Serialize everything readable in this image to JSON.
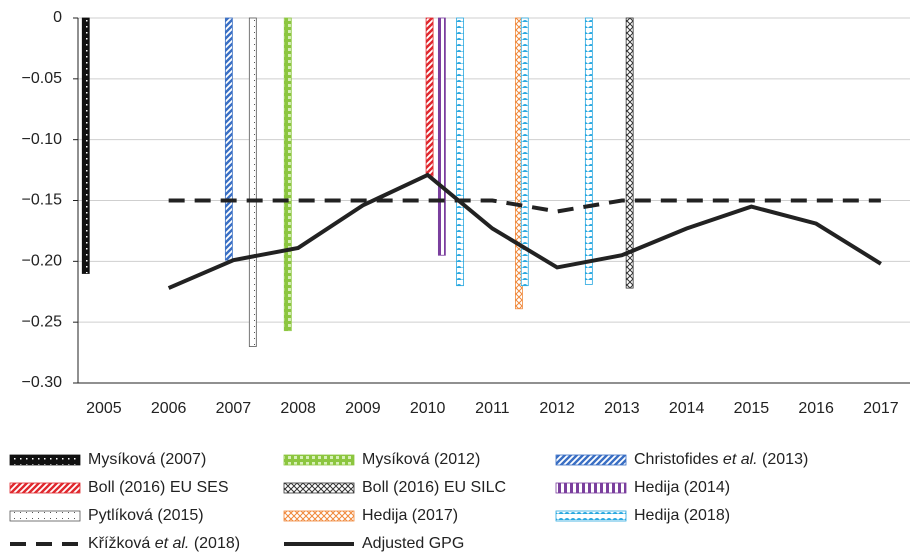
{
  "chart_data": {
    "type": "bar",
    "xlim": [
      2004.6,
      2017.45
    ],
    "xticks": [
      2005,
      2006,
      2007,
      2008,
      2009,
      2010,
      2011,
      2012,
      2013,
      2014,
      2015,
      2016,
      2017
    ],
    "ylim": [
      -0.3,
      0
    ],
    "yticks": [
      0,
      {
        "value": -0.05,
        "label": "−0.05"
      },
      {
        "value": -0.1,
        "label": "−0.10"
      },
      {
        "value": -0.15,
        "label": "−0.15"
      },
      {
        "value": -0.2,
        "label": "−0.20"
      },
      {
        "value": -0.25,
        "label": "−0.25"
      },
      {
        "value": -0.3,
        "label": "−0.30"
      }
    ],
    "grid": true,
    "series": [
      {
        "name": "Mysíková (2007)",
        "type": "bar",
        "color": "#111111",
        "pattern": "solid-dots",
        "x": [
          2004.72
        ],
        "values": [
          -0.21
        ]
      },
      {
        "name": "Mysíková (2012)",
        "type": "bar",
        "color": "#8cc63f",
        "pattern": "grid",
        "x": [
          2007.84
        ],
        "values": [
          -0.257
        ]
      },
      {
        "name": "Christofides et al. (2013)",
        "type": "bar",
        "color": "#3a6fc4",
        "pattern": "stripes",
        "x": [
          2006.93
        ],
        "values": [
          -0.199
        ]
      },
      {
        "name": "Boll (2016) EU SES",
        "type": "bar",
        "color": "#e0282e",
        "pattern": "stripes",
        "x": [
          2010.03
        ],
        "values": [
          -0.13
        ]
      },
      {
        "name": "Boll (2016) EU SILC",
        "type": "bar",
        "color": "#333333",
        "pattern": "crosshatch",
        "x": [
          2013.12
        ],
        "values": [
          -0.222
        ]
      },
      {
        "name": "Hedija (2014)",
        "type": "bar",
        "color": "#7b3f9e",
        "pattern": "vertical",
        "x": [
          2010.22
        ],
        "values": [
          -0.195
        ]
      },
      {
        "name": "Pytlíková (2015)",
        "type": "bar",
        "color": "#555555",
        "pattern": "dots",
        "x": [
          2007.3
        ],
        "values": [
          -0.27
        ]
      },
      {
        "name": "Hedija (2017)",
        "type": "bar",
        "color": "#f0883a",
        "pattern": "crosshatch",
        "x": [
          2011.41
        ],
        "values": [
          -0.239
        ]
      },
      {
        "name": "Hedija (2018)",
        "type": "bar",
        "color": "#29a8e0",
        "pattern": "scallop",
        "x": [
          2010.5,
          2011.5,
          2012.49
        ],
        "values": [
          -0.22,
          -0.22,
          -0.219
        ]
      },
      {
        "name": "Křížková et al. (2018)",
        "type": "line",
        "dash": true,
        "color": "#222222",
        "x": [
          2006,
          2007,
          2008,
          2009,
          2010,
          2011,
          2012,
          2013,
          2014,
          2015,
          2016,
          2017
        ],
        "values": [
          -0.15,
          -0.15,
          -0.15,
          -0.15,
          -0.15,
          -0.15,
          -0.159,
          -0.15,
          -0.15,
          -0.15,
          -0.15,
          -0.15
        ]
      },
      {
        "name": "Adjusted GPG",
        "type": "line",
        "dash": false,
        "color": "#222222",
        "x": [
          2006,
          2007,
          2008,
          2009,
          2010,
          2011,
          2012,
          2013,
          2014,
          2015,
          2016,
          2017
        ],
        "values": [
          -0.222,
          -0.199,
          -0.189,
          -0.154,
          -0.129,
          -0.173,
          -0.205,
          -0.195,
          -0.173,
          -0.155,
          -0.169,
          -0.202
        ]
      }
    ]
  }
}
